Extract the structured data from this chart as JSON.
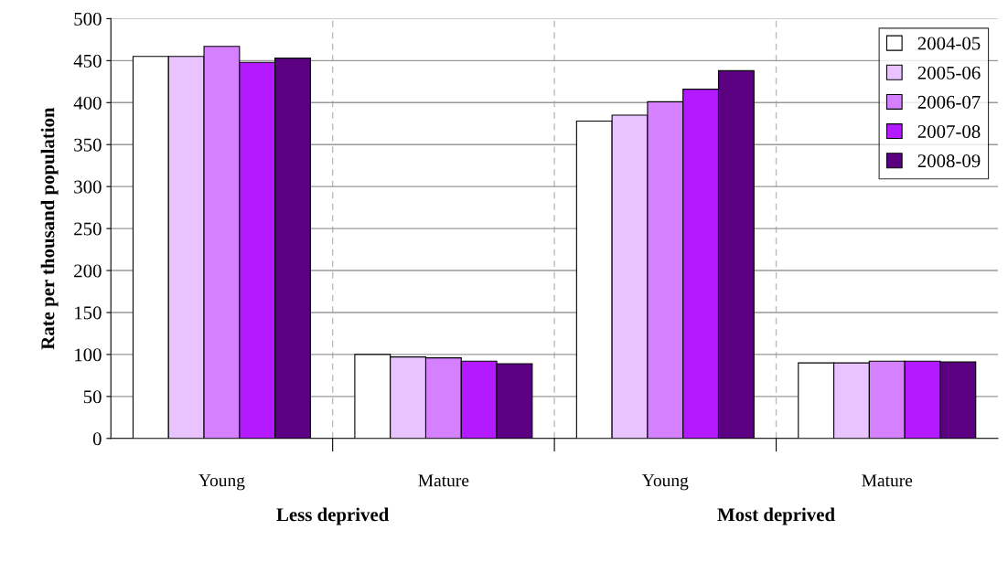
{
  "chart_data": {
    "type": "bar",
    "ylabel": "Rate per thousand population",
    "categories": [
      "Young",
      "Mature",
      "Young",
      "Mature"
    ],
    "annotations": [
      "Less deprived",
      "Most deprived"
    ],
    "series": [
      {
        "name": "2004-05",
        "color": "#ffffff",
        "values": [
          455,
          100,
          378,
          90
        ]
      },
      {
        "name": "2005-06",
        "color": "#e9c3ff",
        "values": [
          455,
          97,
          385,
          90
        ]
      },
      {
        "name": "2006-07",
        "color": "#d580ff",
        "values": [
          467,
          96,
          401,
          92
        ]
      },
      {
        "name": "2007-08",
        "color": "#b41aff",
        "values": [
          448,
          92,
          416,
          92
        ]
      },
      {
        "name": "2008-09",
        "color": "#5b0080",
        "values": [
          453,
          89,
          438,
          91
        ]
      }
    ],
    "ylim": [
      0,
      500
    ],
    "yticks": [
      0,
      50,
      100,
      150,
      200,
      250,
      300,
      350,
      400,
      450,
      500
    ],
    "grid": true,
    "legend": "top right"
  }
}
